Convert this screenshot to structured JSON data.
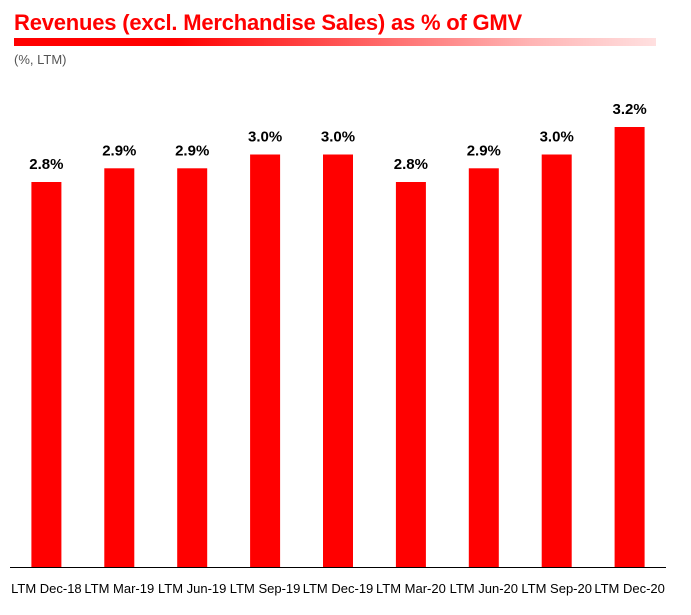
{
  "header": {
    "title": "Revenues (excl. Merchandise Sales) as % of GMV",
    "subtitle": "(%, LTM)"
  },
  "colors": {
    "bar": "#ff0000",
    "axis": "#000000"
  },
  "chart_data": {
    "type": "bar",
    "title": "Revenues (excl. Merchandise Sales) as % of GMV",
    "subtitle": "(%, LTM)",
    "xlabel": "",
    "ylabel": "",
    "ylim": [
      0,
      3.3
    ],
    "grid": false,
    "categories": [
      "LTM Dec-18",
      "LTM Mar-19",
      "LTM Jun-19",
      "LTM Sep-19",
      "LTM Dec-19",
      "LTM Mar-20",
      "LTM Jun-20",
      "LTM Sep-20",
      "LTM Dec-20"
    ],
    "values": [
      2.8,
      2.9,
      2.9,
      3.0,
      3.0,
      2.8,
      2.9,
      3.0,
      3.2
    ],
    "labels": [
      "2.8%",
      "2.9%",
      "2.9%",
      "3.0%",
      "3.0%",
      "2.8%",
      "2.9%",
      "3.0%",
      "3.2%"
    ]
  }
}
